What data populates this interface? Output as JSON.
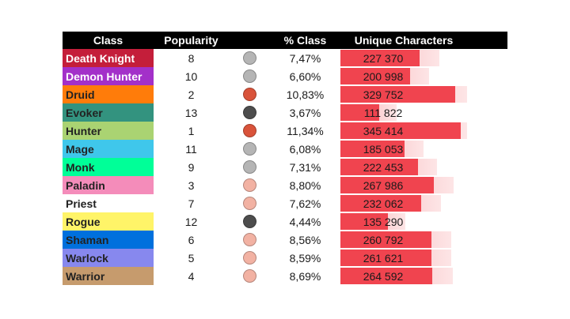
{
  "headers": {
    "class": "Class",
    "popularity": "Popularity",
    "pct_class": "% Class",
    "unique": "Unique Characters"
  },
  "colors": {
    "dot_gray": "#b5b5b5",
    "dot_dark": "#4d4d4d",
    "dot_red": "#d9533a",
    "dot_pink": "#f2b2a3",
    "bar_solid": "#f0444f",
    "bar_light": "#f9a7ab",
    "bar_faint": "#fde5e6"
  },
  "max_unique": 345414,
  "rows": [
    {
      "name": "Death Knight",
      "color": "#c41e3a",
      "text_color": "#ffffff",
      "popularity": "8",
      "dot": "gray",
      "pct": "7,47%",
      "unique": "227 370",
      "value": 227370
    },
    {
      "name": "Demon Hunter",
      "color": "#a330c9",
      "text_color": "#ffffff",
      "popularity": "10",
      "dot": "gray",
      "pct": "6,60%",
      "unique": "200 998",
      "value": 200998
    },
    {
      "name": "Druid",
      "color": "#ff7c0a",
      "text_color": "#222222",
      "popularity": "2",
      "dot": "red",
      "pct": "10,83%",
      "unique": "329 752",
      "value": 329752
    },
    {
      "name": "Evoker",
      "color": "#33937f",
      "text_color": "#222222",
      "popularity": "13",
      "dot": "dark",
      "pct": "3,67%",
      "unique": "111 822",
      "value": 111822
    },
    {
      "name": "Hunter",
      "color": "#aad372",
      "text_color": "#222222",
      "popularity": "1",
      "dot": "red",
      "pct": "11,34%",
      "unique": "345 414",
      "value": 345414
    },
    {
      "name": "Mage",
      "color": "#3fc7eb",
      "text_color": "#222222",
      "popularity": "11",
      "dot": "gray",
      "pct": "6,08%",
      "unique": "185 053",
      "value": 185053
    },
    {
      "name": "Monk",
      "color": "#00ff98",
      "text_color": "#222222",
      "popularity": "9",
      "dot": "gray",
      "pct": "7,31%",
      "unique": "222 453",
      "value": 222453
    },
    {
      "name": "Paladin",
      "color": "#f48cba",
      "text_color": "#222222",
      "popularity": "3",
      "dot": "pink",
      "pct": "8,80%",
      "unique": "267 986",
      "value": 267986
    },
    {
      "name": "Priest",
      "color": "#ffffff",
      "text_color": "#222222",
      "popularity": "7",
      "dot": "pink",
      "pct": "7,62%",
      "unique": "232 062",
      "value": 232062
    },
    {
      "name": "Rogue",
      "color": "#fff468",
      "text_color": "#222222",
      "popularity": "12",
      "dot": "dark",
      "pct": "4,44%",
      "unique": "135 290",
      "value": 135290
    },
    {
      "name": "Shaman",
      "color": "#0070dd",
      "text_color": "#222222",
      "popularity": "6",
      "dot": "pink",
      "pct": "8,56%",
      "unique": "260 792",
      "value": 260792
    },
    {
      "name": "Warlock",
      "color": "#8788ee",
      "text_color": "#222222",
      "popularity": "5",
      "dot": "pink",
      "pct": "8,59%",
      "unique": "261 621",
      "value": 261621
    },
    {
      "name": "Warrior",
      "color": "#c69b6d",
      "text_color": "#222222",
      "popularity": "4",
      "dot": "pink",
      "pct": "8,69%",
      "unique": "264 592",
      "value": 264592
    }
  ]
}
